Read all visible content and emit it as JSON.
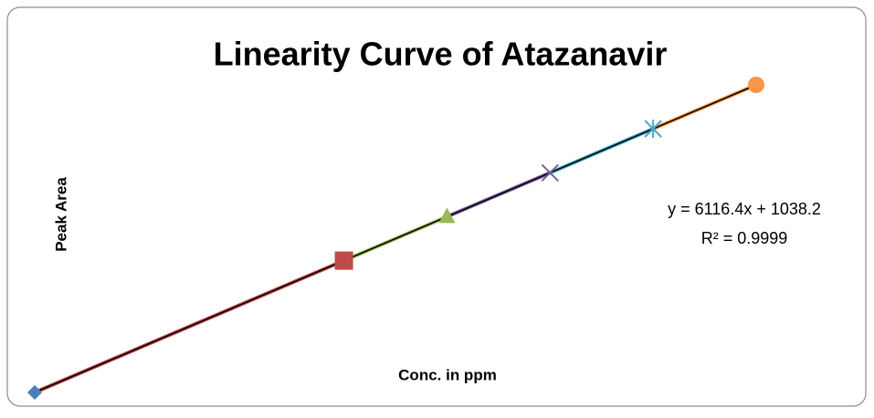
{
  "chart_data": {
    "type": "scatter",
    "title": "Linearity Curve of Atazanavir",
    "x_label": "Conc. in ppm",
    "y_label": "Peak Area",
    "x": [
      0,
      15,
      20,
      25,
      30,
      35
    ],
    "series": [
      {
        "values": [
          1038,
          92784,
          123366,
          153948,
          184530,
          215112
        ],
        "colors": [
          "#4a7ebb",
          "#be4b48",
          "#98b954",
          "#7d60a0",
          "#46aac5",
          "#f79646"
        ],
        "markers": [
          "diamond",
          "square",
          "triangle",
          "x",
          "star",
          "circle"
        ]
      }
    ],
    "trendline": {
      "equation": "y = 6116.4x + 1038.2",
      "r2": "R² = 0.9999",
      "color": "#000000"
    },
    "xlim": [
      0,
      35
    ],
    "ylim": [
      1038,
      215112
    ]
  }
}
